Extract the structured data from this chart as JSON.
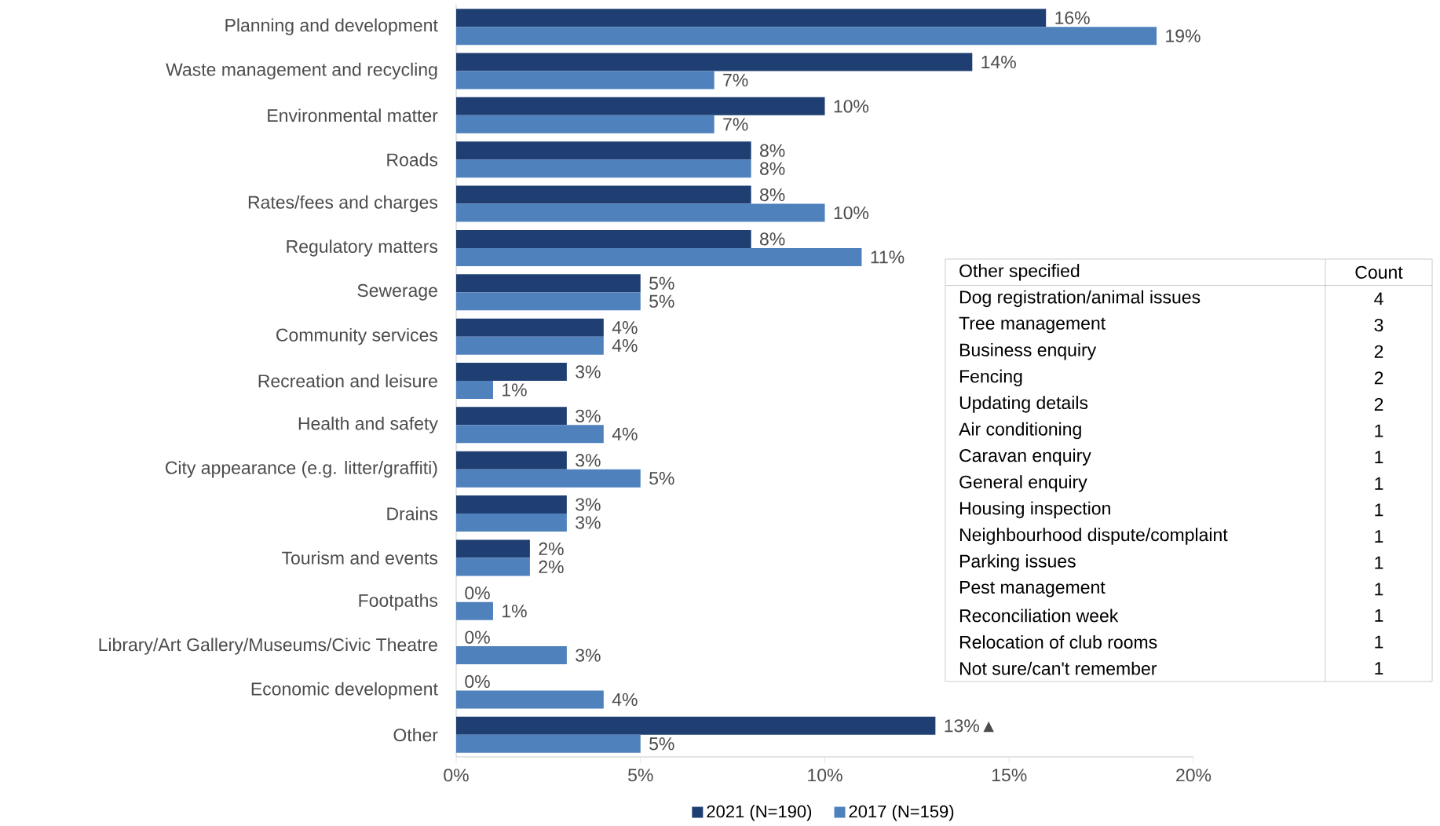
{
  "chart_data": [
    {
      "type": "bar",
      "orientation": "horizontal",
      "categories": [
        "Planning and development",
        "Waste management and recycling",
        "Environmental matter",
        "Roads",
        "Rates/fees and charges",
        "Regulatory matters",
        "Sewerage",
        "Community services",
        "Recreation and leisure",
        "Health and safety",
        "City appearance (e.g. litter/graffiti)",
        "Drains",
        "Tourism and events",
        "Footpaths",
        "Library/Art Gallery/Museums/Civic Theatre",
        "Economic development",
        "Other"
      ],
      "series": [
        {
          "name": "2021 (N=190)",
          "color": "#1f3f73",
          "values": [
            16,
            14,
            10,
            8,
            8,
            8,
            5,
            4,
            3,
            3,
            3,
            3,
            2,
            0,
            0,
            0,
            13
          ],
          "value_labels": [
            "16%",
            "14%",
            "10%",
            "8%",
            "8%",
            "8%",
            "5%",
            "4%",
            "3%",
            "3%",
            "3%",
            "3%",
            "2%",
            "0%",
            "0%",
            "0%",
            "13%▲"
          ]
        },
        {
          "name": "2017 (N=159)",
          "color": "#4f81bd",
          "values": [
            19,
            7,
            7,
            8,
            10,
            11,
            5,
            4,
            1,
            4,
            5,
            3,
            2,
            1,
            3,
            4,
            5
          ],
          "value_labels": [
            "19%",
            "7%",
            "7%",
            "8%",
            "10%",
            "11%",
            "5%",
            "4%",
            "1%",
            "4%",
            "5%",
            "3%",
            "2%",
            "1%",
            "3%",
            "4%",
            "5%"
          ]
        }
      ],
      "xlim": [
        0,
        20
      ],
      "xticks": [
        {
          "value": 0,
          "label": "0%"
        },
        {
          "value": 5,
          "label": "5%"
        },
        {
          "value": 10,
          "label": "10%"
        },
        {
          "value": 15,
          "label": "15%"
        },
        {
          "value": 20,
          "label": "20%"
        }
      ],
      "legend": "bottom"
    },
    {
      "type": "other",
      "annotations": [
        "Other specified",
        "Count"
      ],
      "categories": [
        "Dog registration/animal issues",
        "Tree management",
        "Business enquiry",
        "Fencing",
        "Updating details",
        "Air conditioning",
        "Caravan enquiry",
        "General enquiry",
        "Housing inspection",
        "Neighbourhood dispute/complaint",
        "Parking issues",
        "Pest management",
        "Reconciliation week",
        "Relocation of club rooms",
        "Not sure/can't remember"
      ],
      "values": [
        4,
        3,
        2,
        2,
        2,
        1,
        1,
        1,
        1,
        1,
        1,
        1,
        1,
        1,
        1
      ],
      "data_labels": true
    }
  ]
}
